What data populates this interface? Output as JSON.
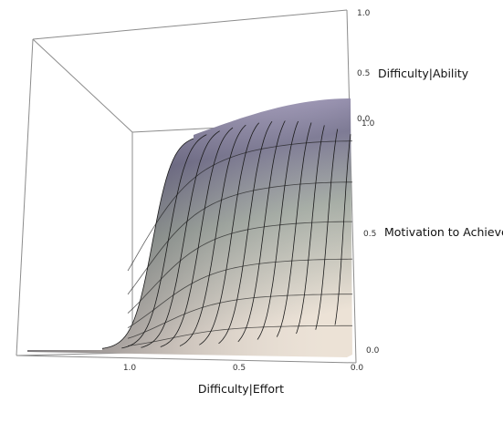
{
  "chart_data": {
    "type": "surface3d",
    "title": "",
    "axes": {
      "x": {
        "label": "Difficulty|Effort",
        "range": [
          0,
          1.5
        ],
        "ticks": [
          1.0,
          0.5,
          0.0
        ],
        "tick_labels": [
          "1.0",
          "0.5",
          "0.0"
        ]
      },
      "y": {
        "label": "Difficulty|Ability",
        "range": [
          0,
          1.0
        ],
        "ticks": [
          1.0,
          0.5,
          0.0
        ],
        "tick_labels": [
          "1.0",
          "0.5",
          "0.0"
        ]
      },
      "z": {
        "label": "Motivation to Achieve",
        "range": [
          0,
          1.0
        ],
        "ticks": [
          1.0,
          0.5,
          0.0
        ],
        "tick_labels": [
          "1.0",
          "0.5",
          "0.0"
        ]
      }
    },
    "mesh_lines": 13,
    "colors": {
      "surface_top": "#c4b7dd",
      "surface_mid": "#a9b0a8",
      "surface_bottom": "#eadfd3",
      "surface_shadow": "#5c5a6e",
      "mesh": "#1a1a1a",
      "box": "#8c8c8c"
    }
  }
}
